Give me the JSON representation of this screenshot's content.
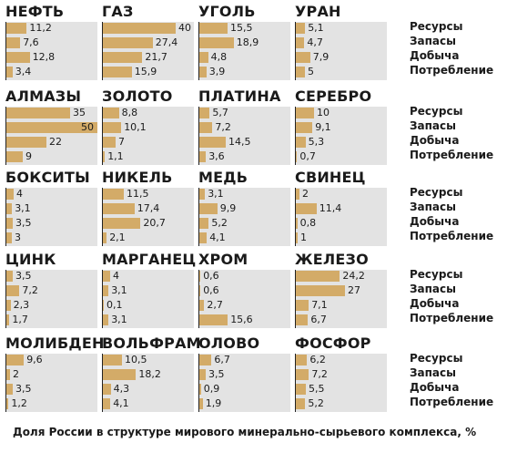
{
  "caption": "Доля России в структуре мирового минерально-сырьевого комплекса, %",
  "legend": [
    "Ресурсы",
    "Запасы",
    "Добыча",
    "Потребление"
  ],
  "colors": {
    "bar": "#d3ab68",
    "panel_bg": "#e3e3e3",
    "text": "#1a1a1a"
  },
  "chart_data": {
    "type": "bar",
    "orientation": "horizontal",
    "small_multiples": true,
    "unit": "%",
    "categories": [
      "Ресурсы",
      "Запасы",
      "Добыча",
      "Потребление"
    ],
    "xlim": [
      0,
      50
    ],
    "panels": [
      {
        "title": "НЕФТЬ",
        "values": [
          11.2,
          7.6,
          12.8,
          3.4
        ],
        "labels": [
          "11,2",
          "7,6",
          "12,8",
          "3,4"
        ]
      },
      {
        "title": "ГАЗ",
        "values": [
          40,
          27.4,
          21.7,
          15.9
        ],
        "labels": [
          "40",
          "27,4",
          "21,7",
          "15,9"
        ]
      },
      {
        "title": "УГОЛЬ",
        "values": [
          15.5,
          18.9,
          4.8,
          3.9
        ],
        "labels": [
          "15,5",
          "18,9",
          "4,8",
          "3,9"
        ]
      },
      {
        "title": "УРАН",
        "values": [
          5.1,
          4.7,
          7.9,
          5
        ],
        "labels": [
          "5,1",
          "4,7",
          "7,9",
          "5"
        ]
      },
      {
        "title": "АЛМАЗЫ",
        "values": [
          35,
          50,
          22,
          9
        ],
        "labels": [
          "35",
          "50",
          "22",
          "9"
        ]
      },
      {
        "title": "ЗОЛОТО",
        "values": [
          8.8,
          10.1,
          7,
          1.1
        ],
        "labels": [
          "8,8",
          "10,1",
          "7",
          "1,1"
        ]
      },
      {
        "title": "ПЛАТИНА",
        "values": [
          5.7,
          7.2,
          14.5,
          3.6
        ],
        "labels": [
          "5,7",
          "7,2",
          "14,5",
          "3,6"
        ]
      },
      {
        "title": "СЕРЕБРО",
        "values": [
          10,
          9.1,
          5.3,
          0.7
        ],
        "labels": [
          "10",
          "9,1",
          "5,3",
          "0,7"
        ]
      },
      {
        "title": "БОКСИТЫ",
        "values": [
          4,
          3.1,
          3.5,
          3
        ],
        "labels": [
          "4",
          "3,1",
          "3,5",
          "3"
        ]
      },
      {
        "title": "НИКЕЛЬ",
        "values": [
          11.5,
          17.4,
          20.7,
          2.1
        ],
        "labels": [
          "11,5",
          "17,4",
          "20,7",
          "2,1"
        ]
      },
      {
        "title": "МЕДЬ",
        "values": [
          3.1,
          9.9,
          5.2,
          4.1
        ],
        "labels": [
          "3,1",
          "9,9",
          "5,2",
          "4,1"
        ]
      },
      {
        "title": "СВИНЕЦ",
        "values": [
          2,
          11.4,
          0.8,
          1
        ],
        "labels": [
          "2",
          "11,4",
          "0,8",
          "1"
        ]
      },
      {
        "title": "ЦИНК",
        "values": [
          3.5,
          7.2,
          2.3,
          1.7
        ],
        "labels": [
          "3,5",
          "7,2",
          "2,3",
          "1,7"
        ]
      },
      {
        "title": "МАРГАНЕЦ",
        "values": [
          4,
          3.1,
          0.1,
          3.1
        ],
        "labels": [
          "4",
          "3,1",
          "0,1",
          "3,1"
        ]
      },
      {
        "title": "ХРОМ",
        "values": [
          0.6,
          0.6,
          2.7,
          15.6
        ],
        "labels": [
          "0,6",
          "0,6",
          "2,7",
          "15,6"
        ]
      },
      {
        "title": "ЖЕЛЕЗО",
        "values": [
          24.2,
          27,
          7.1,
          6.7
        ],
        "labels": [
          "24,2",
          "27",
          "7,1",
          "6,7"
        ]
      },
      {
        "title": "МОЛИБДЕН",
        "values": [
          9.6,
          2,
          3.5,
          1.2
        ],
        "labels": [
          "9,6",
          "2",
          "3,5",
          "1,2"
        ]
      },
      {
        "title": "ВОЛЬФРАМ",
        "values": [
          10.5,
          18.2,
          4.3,
          4.1
        ],
        "labels": [
          "10,5",
          "18,2",
          "4,3",
          "4,1"
        ]
      },
      {
        "title": "ОЛОВО",
        "values": [
          6.7,
          3.5,
          0.9,
          1.9
        ],
        "labels": [
          "6,7",
          "3,5",
          "0,9",
          "1,9"
        ]
      },
      {
        "title": "ФОСФОР",
        "values": [
          6.2,
          7.2,
          5.5,
          5.2
        ],
        "labels": [
          "6,2",
          "7,2",
          "5,5",
          "5,2"
        ]
      }
    ]
  }
}
